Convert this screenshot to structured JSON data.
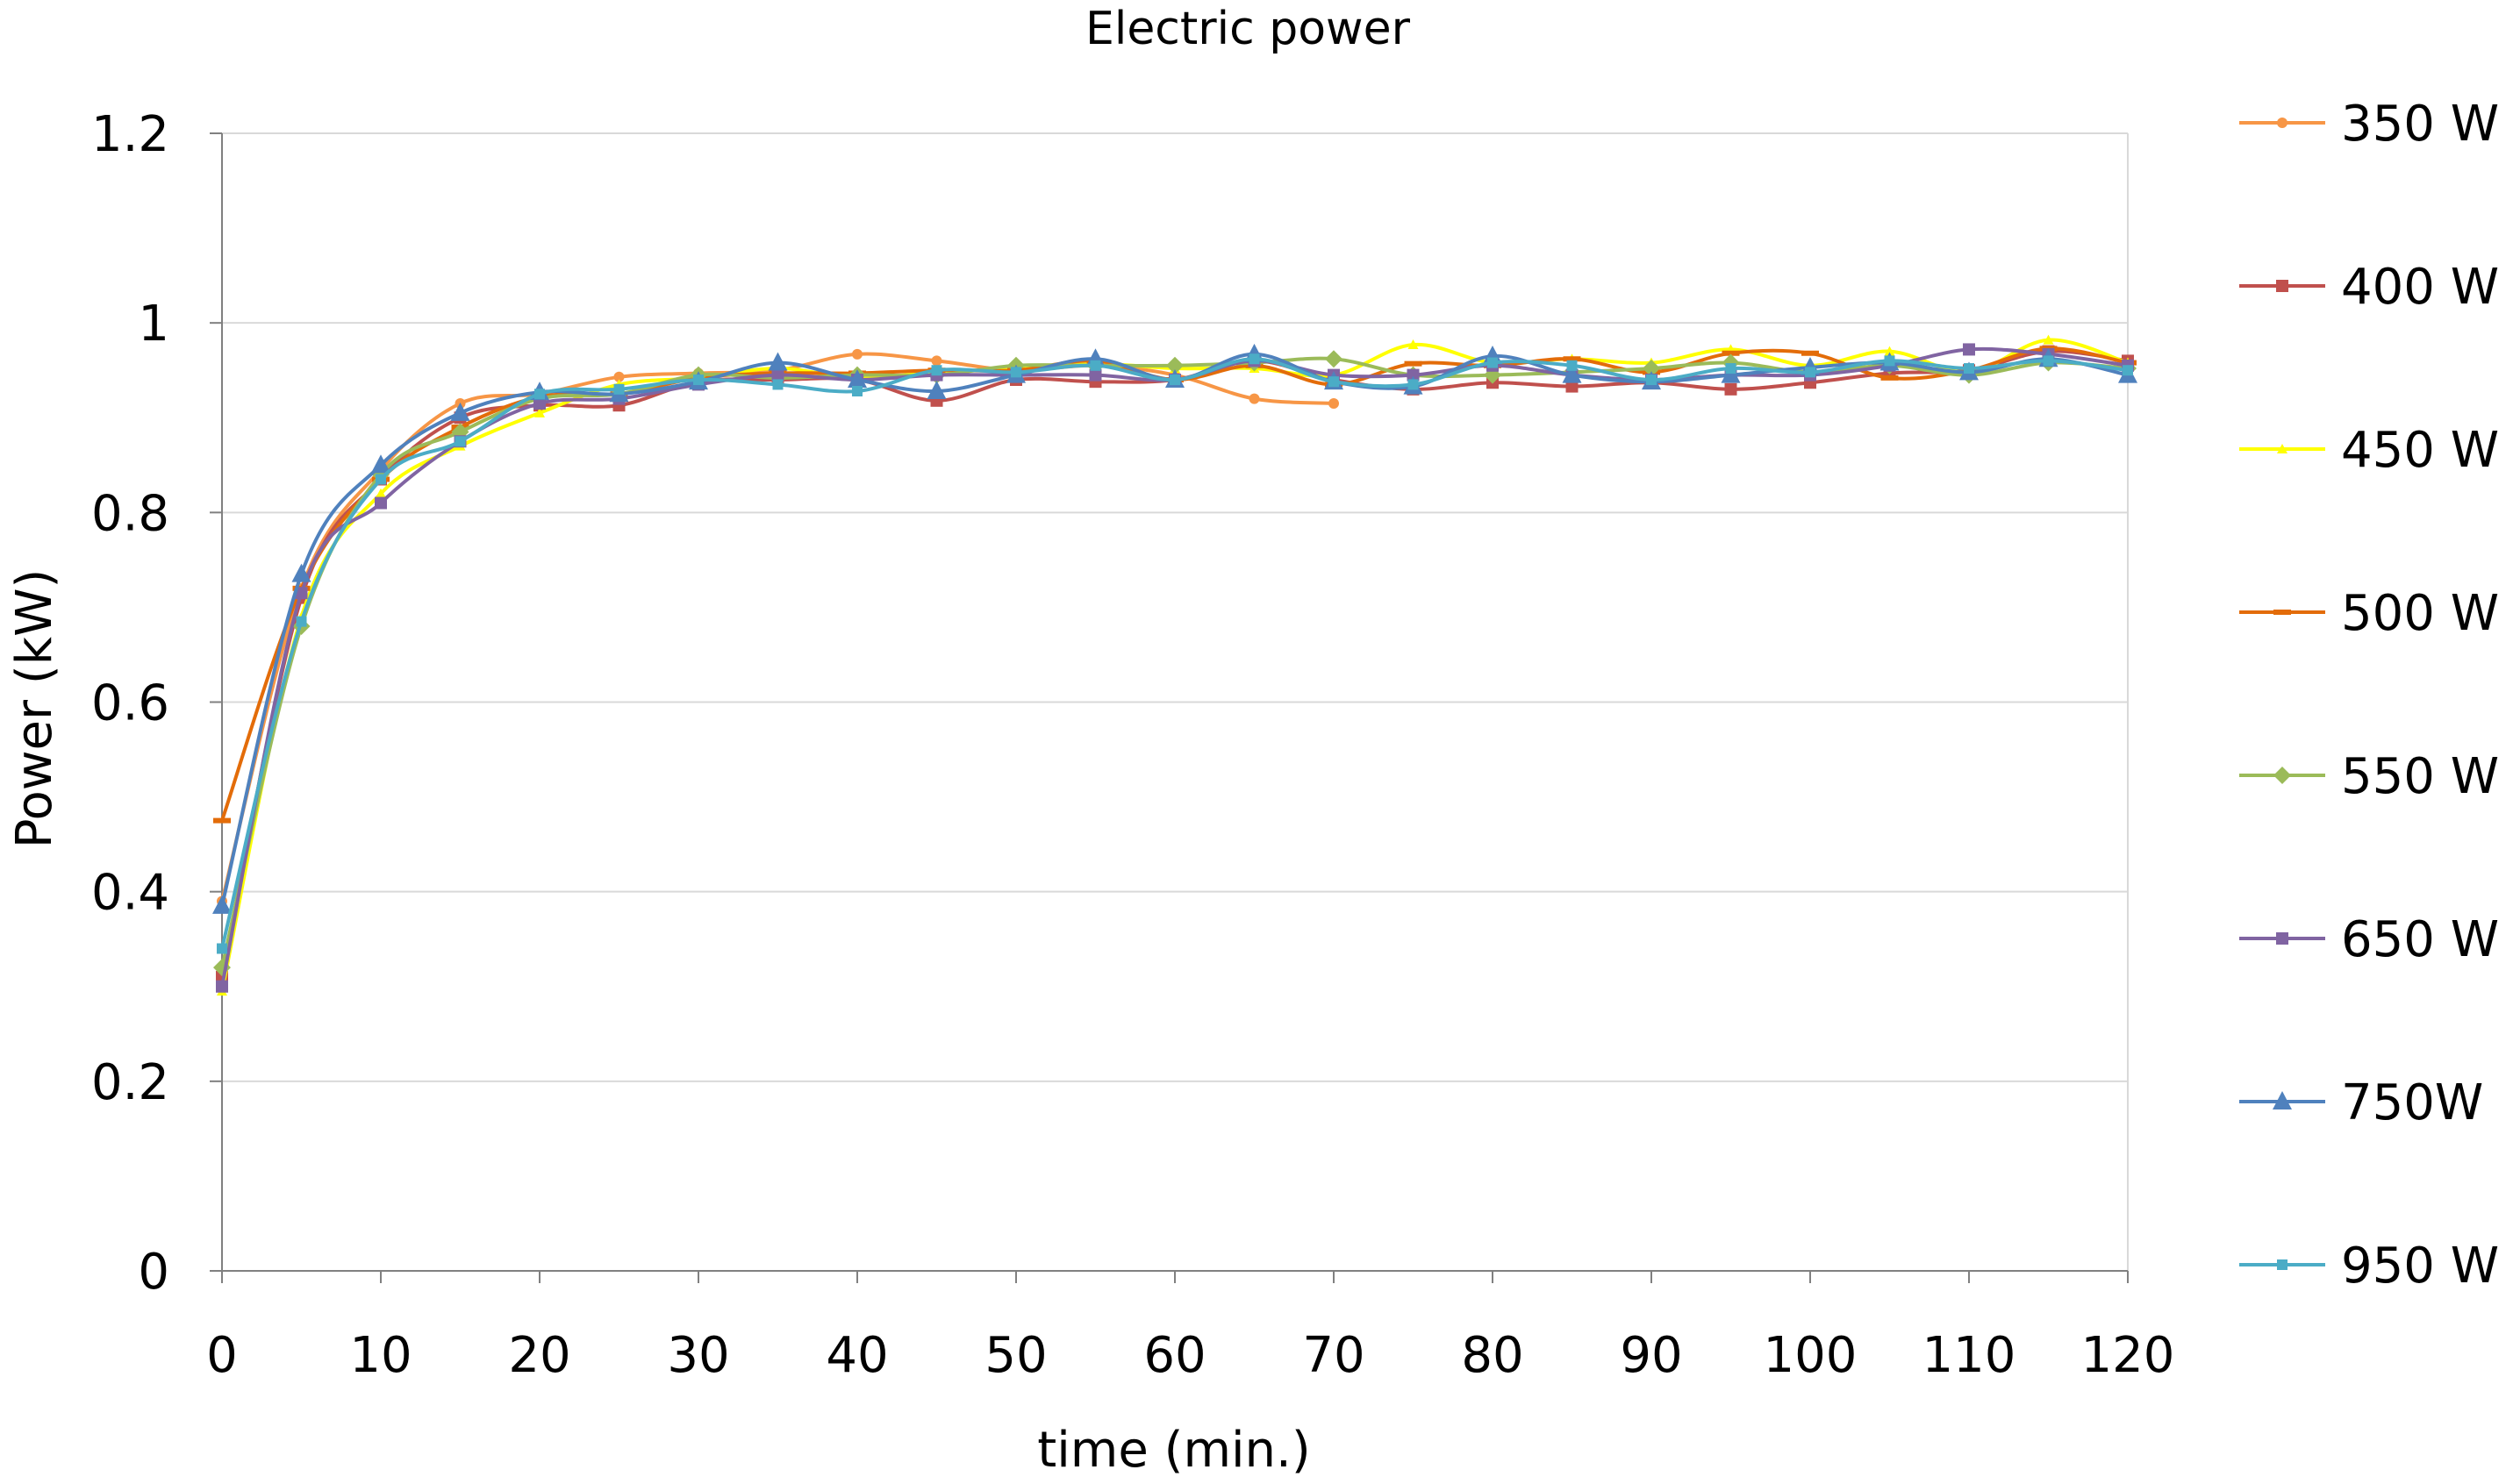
{
  "chart_data": {
    "type": "line",
    "title": "Electric power",
    "xlabel": "time (min.)",
    "ylabel": "Power (kW)",
    "xlim": [
      0,
      120
    ],
    "ylim": [
      0,
      1.2
    ],
    "xticks": [
      0,
      10,
      20,
      30,
      40,
      50,
      60,
      70,
      80,
      90,
      100,
      110,
      120
    ],
    "yticks": [
      0,
      0.2,
      0.4,
      0.6,
      0.8,
      1,
      1.2
    ],
    "xtick_labels": [
      "0",
      "10",
      "20",
      "30",
      "40",
      "50",
      "60",
      "70",
      "80",
      "90",
      "100",
      "110",
      "120"
    ],
    "ytick_labels": [
      "0",
      "0.2",
      "0.4",
      "0.6",
      "0.8",
      "1",
      "1.2"
    ],
    "grid": "horizontal",
    "legend_position": "right",
    "series": [
      {
        "name": "350 W",
        "color": "#F79646",
        "marker": "circle",
        "x": [
          0,
          5,
          10,
          15,
          20,
          25,
          30,
          35,
          40,
          45,
          50,
          55,
          60,
          65,
          70
        ],
        "values": [
          0.39,
          0.72,
          0.845,
          0.915,
          0.925,
          0.943,
          0.947,
          0.95,
          0.967,
          0.96,
          0.95,
          0.955,
          0.945,
          0.92,
          0.915
        ]
      },
      {
        "name": "400 W",
        "color": "#C0504D",
        "marker": "square",
        "x": [
          0,
          5,
          10,
          15,
          20,
          25,
          30,
          35,
          40,
          45,
          50,
          55,
          60,
          65,
          70,
          75,
          80,
          85,
          90,
          95,
          100,
          105,
          110,
          115,
          120
        ],
        "values": [
          0.31,
          0.71,
          0.835,
          0.9,
          0.913,
          0.913,
          0.938,
          0.94,
          0.94,
          0.918,
          0.94,
          0.938,
          0.94,
          0.96,
          0.94,
          0.93,
          0.937,
          0.933,
          0.937,
          0.93,
          0.937,
          0.947,
          0.95,
          0.97,
          0.96
        ]
      },
      {
        "name": "450 W",
        "color": "#FFFF00",
        "marker": "triangle-small",
        "x": [
          0,
          5,
          10,
          15,
          20,
          25,
          30,
          35,
          40,
          45,
          50,
          55,
          60,
          65,
          70,
          75,
          80,
          85,
          90,
          95,
          100,
          105,
          110,
          115,
          120
        ],
        "values": [
          0.295,
          0.69,
          0.82,
          0.87,
          0.905,
          0.935,
          0.942,
          0.952,
          0.942,
          0.948,
          0.952,
          0.957,
          0.952,
          0.952,
          0.945,
          0.977,
          0.958,
          0.962,
          0.958,
          0.972,
          0.955,
          0.97,
          0.948,
          0.982,
          0.958
        ]
      },
      {
        "name": "500 W",
        "color": "#E36C09",
        "marker": "dash",
        "x": [
          0,
          5,
          10,
          15,
          20,
          25,
          30,
          35,
          40,
          45,
          50,
          55,
          60,
          65,
          70,
          75,
          80,
          85,
          90,
          95,
          100,
          105,
          110,
          115,
          120
        ],
        "values": [
          0.475,
          0.72,
          0.835,
          0.89,
          0.922,
          0.925,
          0.942,
          0.947,
          0.947,
          0.95,
          0.95,
          0.96,
          0.94,
          0.955,
          0.935,
          0.957,
          0.955,
          0.962,
          0.948,
          0.968,
          0.968,
          0.942,
          0.95,
          0.973,
          0.958
        ]
      },
      {
        "name": "550 W",
        "color": "#9BBB59",
        "marker": "diamond",
        "x": [
          0,
          5,
          10,
          15,
          20,
          25,
          30,
          35,
          40,
          45,
          50,
          55,
          60,
          65,
          70,
          75,
          80,
          85,
          90,
          95,
          100,
          105,
          110,
          115,
          120
        ],
        "values": [
          0.32,
          0.68,
          0.84,
          0.885,
          0.92,
          0.925,
          0.945,
          0.942,
          0.945,
          0.945,
          0.955,
          0.955,
          0.955,
          0.958,
          0.962,
          0.945,
          0.945,
          0.948,
          0.952,
          0.958,
          0.948,
          0.955,
          0.945,
          0.958,
          0.952
        ]
      },
      {
        "name": "650 W",
        "color": "#8064A2",
        "marker": "square",
        "x": [
          0,
          5,
          10,
          15,
          20,
          25,
          30,
          35,
          40,
          45,
          50,
          55,
          60,
          65,
          70,
          75,
          80,
          85,
          90,
          95,
          100,
          105,
          110,
          115,
          120
        ],
        "values": [
          0.3,
          0.715,
          0.81,
          0.875,
          0.915,
          0.92,
          0.935,
          0.945,
          0.94,
          0.945,
          0.945,
          0.945,
          0.94,
          0.96,
          0.945,
          0.945,
          0.955,
          0.945,
          0.94,
          0.945,
          0.945,
          0.955,
          0.972,
          0.967,
          0.955
        ]
      },
      {
        "name": "750W",
        "color": "#4F81BD",
        "marker": "triangle",
        "x": [
          0,
          5,
          10,
          15,
          20,
          25,
          30,
          35,
          40,
          45,
          50,
          55,
          60,
          65,
          70,
          75,
          80,
          85,
          90,
          95,
          100,
          105,
          110,
          115,
          120
        ],
        "values": [
          0.385,
          0.735,
          0.85,
          0.905,
          0.927,
          0.925,
          0.938,
          0.958,
          0.94,
          0.928,
          0.945,
          0.962,
          0.94,
          0.967,
          0.938,
          0.933,
          0.965,
          0.945,
          0.938,
          0.945,
          0.953,
          0.958,
          0.948,
          0.962,
          0.945
        ]
      },
      {
        "name": "950 W",
        "color": "#4BACC6",
        "marker": "square-small",
        "x": [
          0,
          5,
          10,
          15,
          20,
          25,
          30,
          35,
          40,
          45,
          50,
          55,
          60,
          65,
          70,
          75,
          80,
          85,
          90,
          95,
          100,
          105,
          110,
          115,
          120
        ],
        "values": [
          0.34,
          0.685,
          0.835,
          0.875,
          0.925,
          0.93,
          0.94,
          0.935,
          0.928,
          0.95,
          0.948,
          0.955,
          0.94,
          0.962,
          0.938,
          0.935,
          0.958,
          0.955,
          0.94,
          0.952,
          0.948,
          0.96,
          0.952,
          0.96,
          0.95
        ]
      }
    ]
  }
}
